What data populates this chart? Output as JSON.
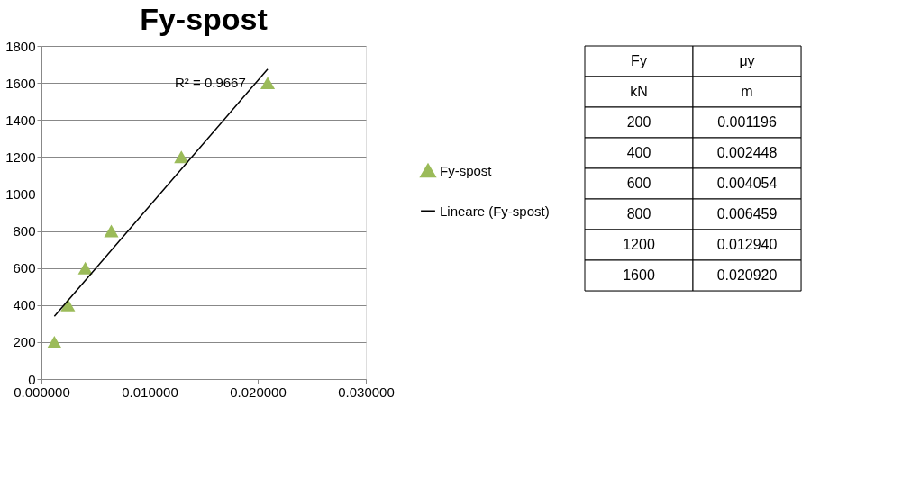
{
  "chart_data": [
    {
      "type": "scatter",
      "title": "Fy-spost",
      "x": [
        0.001196,
        0.002448,
        0.004054,
        0.006459,
        0.01294,
        0.02092
      ],
      "series": [
        {
          "name": "Fy-spost",
          "color": "#9bbb59",
          "values": [
            200,
            400,
            600,
            800,
            1200,
            1600
          ],
          "marker": "triangle"
        },
        {
          "name": "Lineare (Fy-spost)",
          "color": "#000000",
          "type": "line",
          "x": [
            0.001196,
            0.02092
          ],
          "values": [
            339,
            1675
          ],
          "marker": "none",
          "line_style": "solid"
        }
      ],
      "xlim": [
        0,
        0.03
      ],
      "xticks": [
        {
          "value": 0,
          "label": "0.000000"
        },
        {
          "value": 0.01,
          "label": "0.010000"
        },
        {
          "value": 0.02,
          "label": "0.020000"
        },
        {
          "value": 0.03,
          "label": "0.030000"
        }
      ],
      "ylim": [
        0,
        1800
      ],
      "yticks": [
        0,
        200,
        400,
        600,
        800,
        1000,
        1200,
        1400,
        1600,
        1800
      ],
      "grid": "y",
      "legend": "right",
      "annotations": [
        "R² = 0.9667"
      ]
    },
    {
      "type": "other",
      "categories": [
        "0.001196",
        "0.002448",
        "0.004054",
        "0.006459",
        "0.012940",
        "0.020920"
      ],
      "values": [
        200,
        400,
        600,
        800,
        1200,
        1600
      ],
      "data_labels": true,
      "annotations": [
        "Fy",
        "kN",
        "μy",
        "m"
      ]
    }
  ]
}
